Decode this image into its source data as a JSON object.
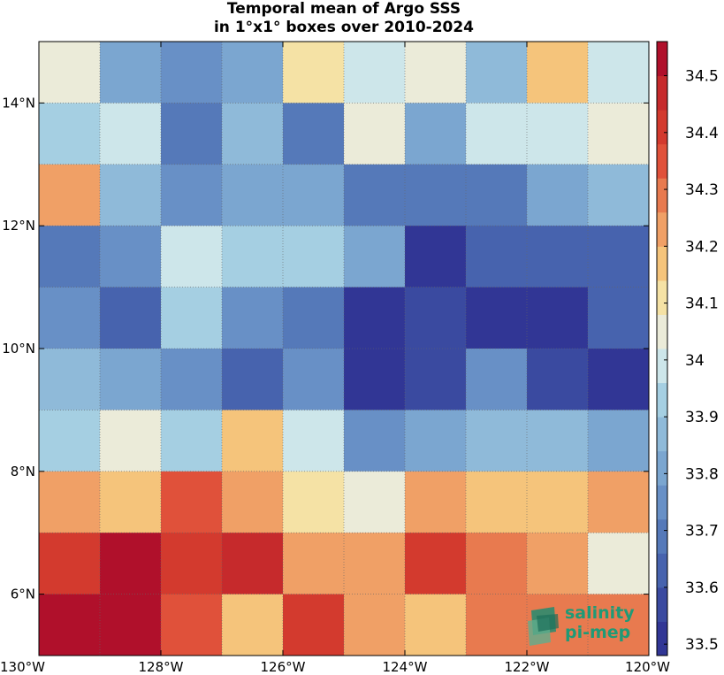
{
  "chart_data": {
    "type": "heatmap",
    "title": [
      "Temporal mean of Argo SSS",
      "in 1°x1° boxes over 2010-2024"
    ],
    "x_ticks": [
      "130°W",
      "128°W",
      "126°W",
      "124°W",
      "122°W",
      "120°W"
    ],
    "x_tick_values": [
      -130,
      -128,
      -126,
      -124,
      -122,
      -120
    ],
    "y_ticks": [
      "14°N",
      "12°N",
      "10°N",
      "8°N",
      "6°N"
    ],
    "y_tick_values": [
      14,
      12,
      10,
      8,
      6
    ],
    "xlim": [
      -130,
      -120
    ],
    "ylim": [
      5,
      15
    ],
    "grid": true,
    "colorbar": {
      "min": 33.48,
      "max": 34.56,
      "step": 0.06,
      "ticks": [
        "33.5",
        "33.6",
        "33.7",
        "33.8",
        "33.9",
        "34",
        "34.1",
        "34.2",
        "34.3",
        "34.4",
        "34.5"
      ],
      "tick_values": [
        33.5,
        33.6,
        33.7,
        33.8,
        33.9,
        34.0,
        34.1,
        34.2,
        34.3,
        34.4,
        34.5
      ],
      "colors": [
        "#313695",
        "#3a4aa0",
        "#4763ae",
        "#5579b9",
        "#6890c6",
        "#7ba6d0",
        "#8fbad9",
        "#a5cfe2",
        "#cde6ea",
        "#ebebd9",
        "#f5e2a5",
        "#f5c47b",
        "#f0a066",
        "#e87a4f",
        "#e0513a",
        "#d33a2e",
        "#c62a2c",
        "#b0102b"
      ]
    },
    "lon_centers": [
      -129.5,
      -128.5,
      -127.5,
      -126.5,
      -125.5,
      -124.5,
      -123.5,
      -122.5,
      -121.5,
      -120.5
    ],
    "lat_centers": [
      14.5,
      13.5,
      12.5,
      11.5,
      10.5,
      9.5,
      8.5,
      7.5,
      6.5,
      5.5
    ],
    "values": [
      [
        34.03,
        33.83,
        33.77,
        33.8,
        34.13,
        33.98,
        34.04,
        33.86,
        34.19,
        33.97
      ],
      [
        33.91,
        33.98,
        33.71,
        33.86,
        33.71,
        34.04,
        33.81,
        33.98,
        33.99,
        34.03
      ],
      [
        34.25,
        33.86,
        33.72,
        33.78,
        33.82,
        33.71,
        33.68,
        33.68,
        33.83,
        33.86
      ],
      [
        33.71,
        33.72,
        33.98,
        33.92,
        33.91,
        33.81,
        33.5,
        33.6,
        33.66,
        33.62
      ],
      [
        33.77,
        33.66,
        33.91,
        33.77,
        33.67,
        33.52,
        33.56,
        33.51,
        33.51,
        33.61
      ],
      [
        33.86,
        33.82,
        33.76,
        33.6,
        33.75,
        33.52,
        33.57,
        33.75,
        33.57,
        33.52
      ],
      [
        33.91,
        34.04,
        33.91,
        34.14,
        33.97,
        33.73,
        33.8,
        33.86,
        33.86,
        33.82
      ],
      [
        34.25,
        34.14,
        34.34,
        34.25,
        34.13,
        34.04,
        34.25,
        34.19,
        34.14,
        34.25
      ],
      [
        34.4,
        34.51,
        34.4,
        34.45,
        34.25,
        34.25,
        34.39,
        34.31,
        34.25,
        34.04
      ],
      [
        34.5,
        34.51,
        34.34,
        34.19,
        34.39,
        34.25,
        34.19,
        34.31,
        34.31,
        34.31
      ]
    ]
  },
  "logo": {
    "line1": "salinity",
    "line2": "pi-mep"
  }
}
